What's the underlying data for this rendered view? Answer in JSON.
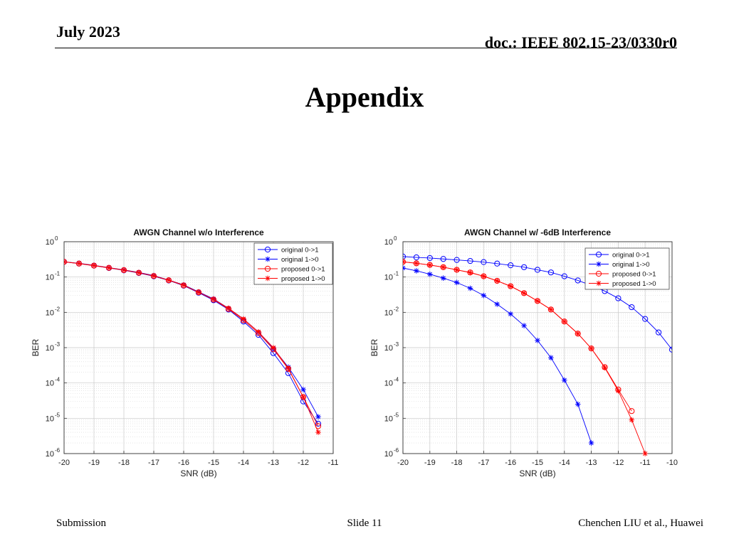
{
  "header": {
    "date": "July 2023",
    "doc": "doc.: IEEE 802.15-23/0330r0"
  },
  "slide": {
    "title": "Appendix"
  },
  "footer": {
    "left": "Submission",
    "center": "Slide 11",
    "right": "Chenchen LIU et al., Huawei"
  },
  "colors": {
    "original": "#0000ff",
    "proposed": "#ff0000"
  },
  "chart_data": [
    {
      "type": "line",
      "title": "AWGN Channel w/o Interference",
      "xlabel": "SNR (dB)",
      "ylabel": "BER",
      "xlim": [
        -20,
        -11
      ],
      "ylim": [
        1e-06,
        1
      ],
      "y_scale": "log",
      "xticks": [
        -20,
        -19,
        -18,
        -17,
        -16,
        -15,
        -14,
        -13,
        -12,
        -11
      ],
      "xtick_labels": [
        "-20",
        "-19",
        "-18",
        "-17",
        "-16",
        "-15",
        "-14",
        "-13",
        "-12",
        "-11"
      ],
      "yticks_exp": [
        0,
        -1,
        -2,
        -3,
        -4,
        -5,
        -6
      ],
      "ytick_labels": [
        "10",
        "10",
        "10",
        "10",
        "10",
        "10",
        "10"
      ],
      "ytick_sup": [
        "0",
        "-1",
        "-2",
        "-3",
        "-4",
        "-5",
        "-6"
      ],
      "grid": true,
      "legend_position": "top-right",
      "series": [
        {
          "name": "original 0->1",
          "color": "#0000ff",
          "marker": "circle",
          "x": [
            -20,
            -19.5,
            -19,
            -18.5,
            -18,
            -17.5,
            -17,
            -16.5,
            -16,
            -15.5,
            -15,
            -14.5,
            -14,
            -13.5,
            -13,
            -12.5,
            -12,
            -11.5
          ],
          "y": [
            0.27,
            0.24,
            0.21,
            0.18,
            0.155,
            0.13,
            0.105,
            0.08,
            0.057,
            0.036,
            0.022,
            0.012,
            0.0055,
            0.0023,
            0.0007,
            0.00019,
            3e-05,
            7e-06
          ]
        },
        {
          "name": "original 1->0",
          "color": "#0000ff",
          "marker": "star",
          "x": [
            -20,
            -19.5,
            -19,
            -18.5,
            -18,
            -17.5,
            -17,
            -16.5,
            -16,
            -15.5,
            -15,
            -14.5,
            -14,
            -13.5,
            -13,
            -12.5,
            -12,
            -11.5
          ],
          "y": [
            0.27,
            0.245,
            0.215,
            0.185,
            0.16,
            0.135,
            0.11,
            0.082,
            0.06,
            0.038,
            0.024,
            0.013,
            0.0065,
            0.0028,
            0.00095,
            0.00028,
            6.5e-05,
            1.1e-05
          ]
        },
        {
          "name": "proposed 0->1",
          "color": "#ff0000",
          "marker": "circle",
          "x": [
            -20,
            -19.5,
            -19,
            -18.5,
            -18,
            -17.5,
            -17,
            -16.5,
            -16,
            -15.5,
            -15,
            -14.5,
            -14,
            -13.5,
            -13,
            -12.5,
            -12,
            -11.5
          ],
          "y": [
            0.27,
            0.24,
            0.21,
            0.182,
            0.157,
            0.132,
            0.107,
            0.081,
            0.058,
            0.037,
            0.023,
            0.0125,
            0.006,
            0.0026,
            0.0009,
            0.00025,
            4e-05,
            6e-06
          ]
        },
        {
          "name": "proposed 1->0",
          "color": "#ff0000",
          "marker": "star",
          "x": [
            -20,
            -19.5,
            -19,
            -18.5,
            -18,
            -17.5,
            -17,
            -16.5,
            -16,
            -15.5,
            -15,
            -14.5,
            -14,
            -13.5,
            -13,
            -12.5,
            -12,
            -11.5
          ],
          "y": [
            0.27,
            0.243,
            0.213,
            0.183,
            0.158,
            0.133,
            0.108,
            0.082,
            0.059,
            0.037,
            0.0235,
            0.013,
            0.0065,
            0.0028,
            0.001,
            0.00026,
            4e-05,
            4e-06
          ]
        }
      ]
    },
    {
      "type": "line",
      "title": "AWGN Channel w/ -6dB Interference",
      "xlabel": "SNR (dB)",
      "ylabel": "BER",
      "xlim": [
        -20,
        -10
      ],
      "ylim": [
        1e-06,
        1
      ],
      "y_scale": "log",
      "xticks": [
        -20,
        -19,
        -18,
        -17,
        -16,
        -15,
        -14,
        -13,
        -12,
        -11,
        -10
      ],
      "xtick_labels": [
        "-20",
        "-19",
        "-18",
        "-17",
        "-16",
        "-15",
        "-14",
        "-13",
        "-12",
        "-11",
        "-10"
      ],
      "yticks_exp": [
        0,
        -1,
        -2,
        -3,
        -4,
        -5,
        -6
      ],
      "ytick_labels": [
        "10",
        "10",
        "10",
        "10",
        "10",
        "10",
        "10"
      ],
      "ytick_sup": [
        "0",
        "-1",
        "-2",
        "-3",
        "-4",
        "-5",
        "-6"
      ],
      "grid": true,
      "legend_position": "top-right",
      "series": [
        {
          "name": "original 0->1",
          "color": "#0000ff",
          "marker": "circle",
          "x": [
            -20,
            -19.5,
            -19,
            -18.5,
            -18,
            -17.5,
            -17,
            -16.5,
            -16,
            -15.5,
            -15,
            -14.5,
            -14,
            -13.5,
            -13,
            -12.5,
            -12,
            -11.5,
            -11,
            -10.5,
            -10
          ],
          "y": [
            0.38,
            0.36,
            0.345,
            0.325,
            0.305,
            0.285,
            0.265,
            0.24,
            0.215,
            0.19,
            0.16,
            0.135,
            0.105,
            0.08,
            0.058,
            0.04,
            0.025,
            0.014,
            0.0065,
            0.0027,
            0.00088
          ]
        },
        {
          "name": "original 1->0",
          "color": "#0000ff",
          "marker": "star",
          "x": [
            -20,
            -19.5,
            -19,
            -18.5,
            -18,
            -17.5,
            -17,
            -16.5,
            -16,
            -15.5,
            -15,
            -14.5,
            -14,
            -13.5,
            -13
          ],
          "y": [
            0.18,
            0.15,
            0.12,
            0.093,
            0.07,
            0.048,
            0.03,
            0.017,
            0.009,
            0.0042,
            0.0016,
            0.00052,
            0.00012,
            2.5e-05,
            2e-06
          ]
        },
        {
          "name": "proposed 0->1",
          "color": "#ff0000",
          "marker": "circle",
          "x": [
            -20,
            -19.5,
            -19,
            -18.5,
            -18,
            -17.5,
            -17,
            -16.5,
            -16,
            -15.5,
            -15,
            -14.5,
            -14,
            -13.5,
            -13,
            -12.5,
            -12,
            -11.5
          ],
          "y": [
            0.27,
            0.245,
            0.22,
            0.19,
            0.16,
            0.135,
            0.105,
            0.078,
            0.055,
            0.035,
            0.021,
            0.012,
            0.0055,
            0.0025,
            0.00095,
            0.00028,
            6.5e-05,
            1.6e-05
          ]
        },
        {
          "name": "proposed 1->0",
          "color": "#ff0000",
          "marker": "star",
          "x": [
            -20,
            -19.5,
            -19,
            -18.5,
            -18,
            -17.5,
            -17,
            -16.5,
            -16,
            -15.5,
            -15,
            -14.5,
            -14,
            -13.5,
            -13,
            -12.5,
            -12,
            -11.5,
            -11
          ],
          "y": [
            0.27,
            0.245,
            0.218,
            0.19,
            0.16,
            0.133,
            0.105,
            0.078,
            0.055,
            0.035,
            0.021,
            0.012,
            0.0055,
            0.0025,
            0.00095,
            0.00027,
            6e-05,
            9e-06,
            1e-06
          ]
        }
      ]
    }
  ]
}
